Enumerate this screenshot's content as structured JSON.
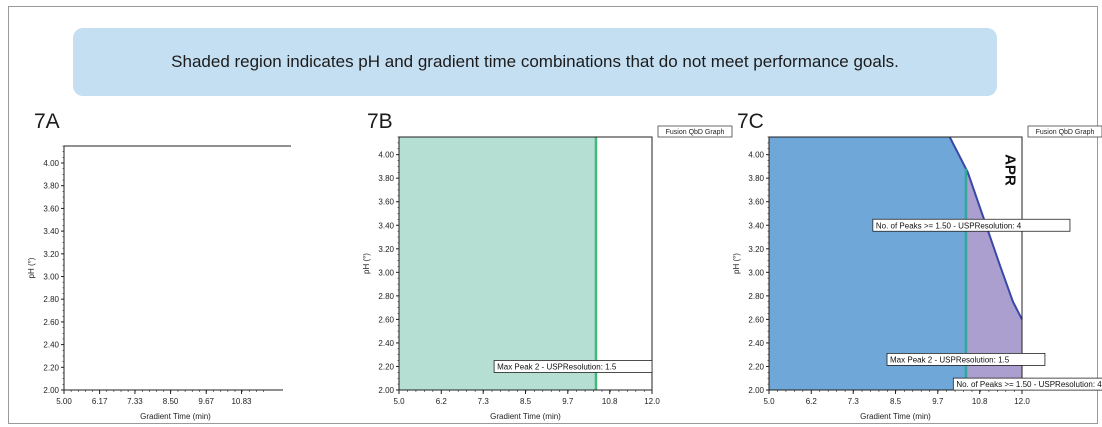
{
  "banner": {
    "text": "Shaded region indicates pH and gradient time combinations that do not meet performance goals."
  },
  "colors": {
    "fail_green": "#b5dfd2",
    "fail_green_line": "#3fba7d",
    "fail_blue": "#6fa7d8",
    "pass_purple": "#ab9fcf",
    "boundary_line": "#3a48a6",
    "teal_line": "#2faa9a",
    "banner_bg": "#c5dff2"
  },
  "chart_data": [
    {
      "id": "7A",
      "type": "area",
      "panel_label": "7A",
      "title": "",
      "xlabel": "Gradient Time (min)",
      "ylabel": "pH (°)",
      "xlim": [
        5.0,
        11.667
      ],
      "ylim": [
        2.0,
        4.15
      ],
      "xticks": [
        "5.00",
        "6.17",
        "7.33",
        "8.50",
        "9.67",
        "10.83"
      ],
      "xtick_values": [
        5.0,
        6.17,
        7.33,
        8.5,
        9.67,
        10.83
      ],
      "yticks": [
        "2.00",
        "2.20",
        "2.40",
        "2.60",
        "2.80",
        "3.00",
        "3.20",
        "3.40",
        "3.60",
        "3.80",
        "4.00"
      ],
      "shaded_regions": [],
      "annotations": []
    },
    {
      "id": "7B",
      "type": "area",
      "panel_label": "7B",
      "title": "",
      "tag": "Fusion QbD Graph",
      "xlabel": "Gradient Time (min)",
      "ylabel": "pH (°)",
      "xlim": [
        5.0,
        12.0
      ],
      "ylim": [
        2.0,
        4.15
      ],
      "xticks": [
        "5.0",
        "6.2",
        "7.3",
        "8.5",
        "9.7",
        "10.8",
        "12.0"
      ],
      "xtick_values": [
        5.0,
        6.17,
        7.33,
        8.5,
        9.67,
        10.83,
        12.0
      ],
      "yticks": [
        "2.00",
        "2.20",
        "2.40",
        "2.60",
        "2.80",
        "3.00",
        "3.20",
        "3.40",
        "3.60",
        "3.80",
        "4.00"
      ],
      "shaded_regions": [
        {
          "name": "Max Peak 2 - USPResolution: 1.5",
          "x_from": 5.0,
          "x_to": 10.45,
          "color_key": "fail_green"
        }
      ],
      "lines": [
        {
          "name": "Max Peak 2 - USPResolution: 1.5",
          "points": [
            [
              10.45,
              2.0
            ],
            [
              10.45,
              4.15
            ]
          ],
          "color_key": "fail_green_line"
        }
      ],
      "annotations": [
        {
          "text": "Max Peak 2 - USPResolution: 1.5",
          "x": 10.45,
          "y": 2.2,
          "anchor": "right"
        }
      ]
    },
    {
      "id": "7C",
      "type": "area",
      "panel_label": "7C",
      "title": "",
      "tag": "Fusion QbD Graph",
      "xlabel": "Gradient Time (min)",
      "ylabel": "pH (°)",
      "xlim": [
        5.0,
        12.0
      ],
      "ylim": [
        2.0,
        4.15
      ],
      "xticks": [
        "5.0",
        "6.2",
        "7.3",
        "8.5",
        "9.7",
        "10.8",
        "12.0"
      ],
      "xtick_values": [
        5.0,
        6.17,
        7.33,
        8.5,
        9.67,
        10.83,
        12.0
      ],
      "yticks": [
        "2.00",
        "2.20",
        "2.40",
        "2.60",
        "2.80",
        "3.00",
        "3.20",
        "3.40",
        "3.60",
        "3.80",
        "4.00"
      ],
      "region_text": "APR",
      "boundary_curve": [
        [
          10.0,
          4.15
        ],
        [
          10.5,
          3.85
        ],
        [
          10.95,
          3.45
        ],
        [
          11.4,
          3.05
        ],
        [
          11.75,
          2.75
        ],
        [
          12.0,
          2.6
        ]
      ],
      "teal_line_x": 10.45,
      "annotations": [
        {
          "text": "No. of Peaks >= 1.50 - USPResolution: 4",
          "x": 10.6,
          "y": 3.4,
          "anchor": "center"
        },
        {
          "text": "Max Peak 2 - USPResolution: 1.5",
          "x": 10.45,
          "y": 2.26,
          "anchor": "center"
        },
        {
          "text": "No. of Peaks >= 1.50 - USPResolution: 4",
          "x": 12.05,
          "y": 2.05,
          "anchor": "center"
        }
      ]
    }
  ]
}
